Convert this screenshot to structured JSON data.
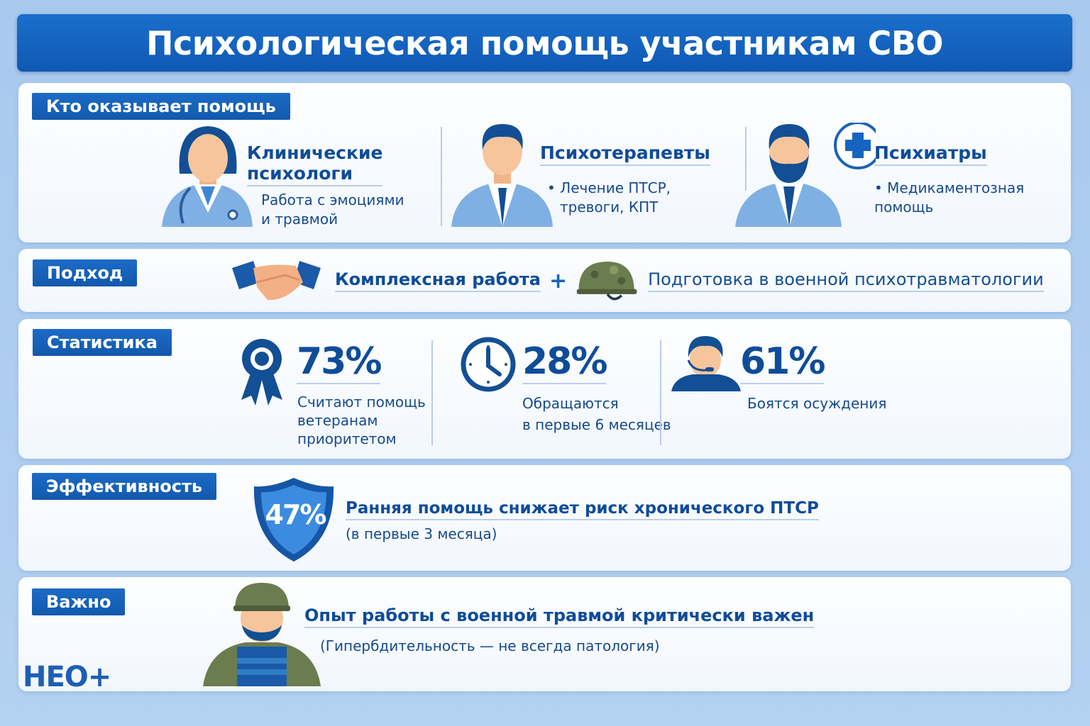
{
  "title": "Психологическая помощь участникам СВО",
  "who": {
    "tag": "Кто оказывает помощь",
    "items": [
      {
        "title_line1": "Клинические",
        "title_line2": "психологи",
        "desc_line1": "Работа с эмоциями",
        "desc_line2": "и травмой",
        "icon": "female-doctor-icon"
      },
      {
        "title": "Психотерапевты",
        "desc_line1": "• Лечение ПТСР,",
        "desc_line2": "тревоги, КПТ",
        "icon": "male-doctor-icon"
      },
      {
        "title": "Психиатры",
        "desc_line1": "•  Медикаментозная",
        "desc_line2": "помощь",
        "icon": "bearded-doctor-icon"
      }
    ]
  },
  "approach": {
    "tag": "Подход",
    "left": "Комплексная работа",
    "plus": "+",
    "right": "Подготовка в военной психотравматологии"
  },
  "stats": {
    "tag": "Статистика",
    "items": [
      {
        "value": "73%",
        "line1": "Считают помощь",
        "line2": "ветеранам",
        "line3": "приоритетом",
        "icon": "award-ribbon-icon"
      },
      {
        "value": "28%",
        "line1": "Обращаются",
        "line2": "в первые 6 месяцев",
        "icon": "clock-icon"
      },
      {
        "value": "61%",
        "line1": "Боятся осуждения",
        "icon": "person-headset-icon"
      }
    ]
  },
  "efficiency": {
    "tag": "Эффективность",
    "shield_value": "47%",
    "headline": "Ранняя помощь снижает риск хронического ПТСР",
    "note": "(в первые 3 месяца)"
  },
  "important": {
    "tag": "Важно",
    "headline": "Опыт работы с военной травмой критически важен",
    "note": "(Гипербдительность — не всегда патология)"
  },
  "logo": "НЕО+",
  "colors": {
    "primary": "#1565c0",
    "dark": "#0f4c99",
    "background": "#a9cbee"
  }
}
